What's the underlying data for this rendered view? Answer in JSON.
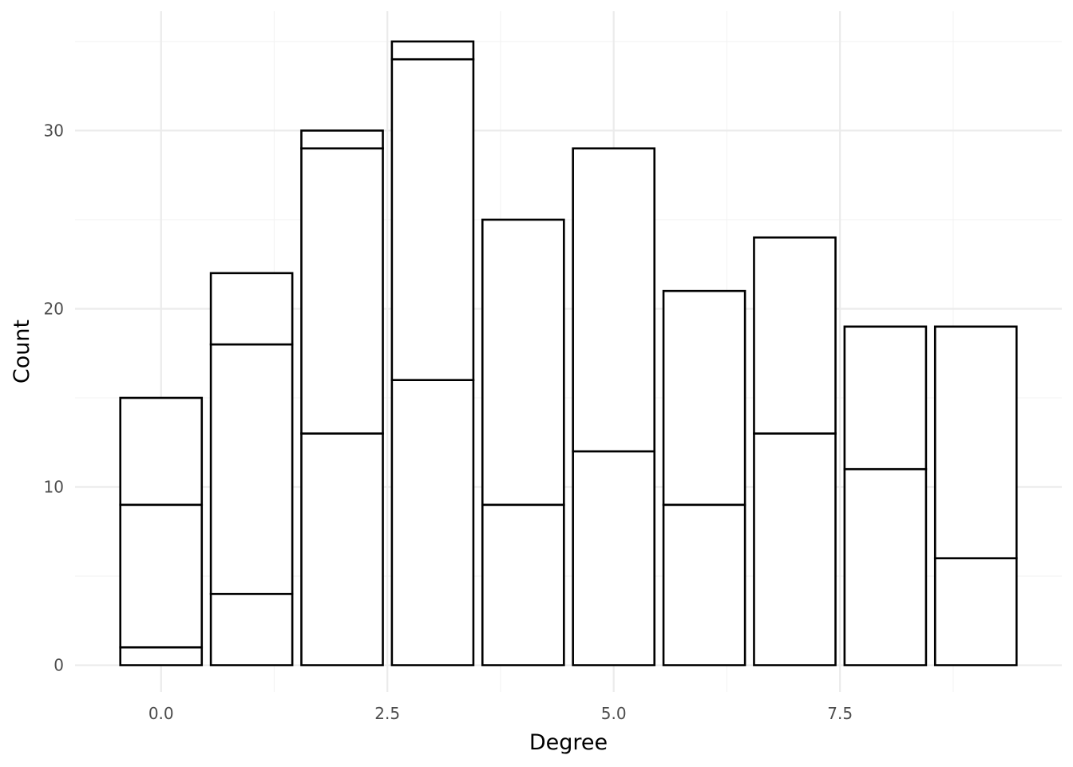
{
  "chart_data": {
    "type": "bar",
    "stacked": true,
    "title": "",
    "xlabel": "Degree",
    "ylabel": "Count",
    "xlim": [
      -0.95,
      9.95
    ],
    "ylim": [
      -1.5,
      36.7
    ],
    "x_ticks": [
      0.0,
      2.5,
      5.0,
      7.5
    ],
    "x_tick_labels": [
      "0.0",
      "2.5",
      "5.0",
      "7.5"
    ],
    "y_ticks": [
      0,
      10,
      20,
      30
    ],
    "y_tick_labels": [
      "0",
      "10",
      "20",
      "30"
    ],
    "grid": true,
    "bar_width": 0.9,
    "fill_color": "#ffffff",
    "outline_color": "#000000",
    "categories": [
      0,
      1,
      2,
      3,
      4,
      5,
      6,
      7,
      8,
      9
    ],
    "stacks": [
      [
        1,
        9,
        15
      ],
      [
        4,
        18,
        22
      ],
      [
        13,
        29,
        30
      ],
      [
        16,
        34,
        35
      ],
      [
        9,
        25
      ],
      [
        12,
        29
      ],
      [
        9,
        21
      ],
      [
        13,
        24
      ],
      [
        11,
        19
      ],
      [
        6,
        19
      ]
    ]
  }
}
